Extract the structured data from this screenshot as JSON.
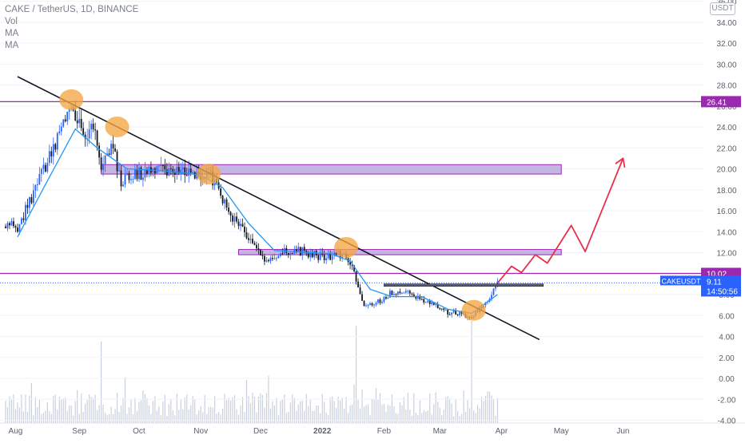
{
  "header": {
    "symbol_line": "CAKE / TetherUS, 1D, BINANCE",
    "indicators": [
      "Vol",
      "MA",
      "MA"
    ],
    "currency_button": "USDT"
  },
  "chart_data": {
    "type": "candlestick",
    "title": "CAKE / TetherUS, 1D, BINANCE",
    "x_ticks": [
      "Aug",
      "Sep",
      "Oct",
      "Nov",
      "Dec",
      "2022",
      "Feb",
      "Mar",
      "Apr",
      "May",
      "Jun"
    ],
    "y_ticks": [
      36.0,
      34.0,
      32.0,
      30.0,
      28.0,
      26.0,
      24.0,
      22.0,
      20.0,
      18.0,
      16.0,
      14.0,
      12.0,
      10.0,
      8.0,
      6.0,
      4.0,
      2.0,
      0.0,
      -2.0,
      -4.0
    ],
    "y_tick_labels": [
      "36.00",
      "34.00",
      "32.00",
      "30.00",
      "28.00",
      "26.00",
      "24.00",
      "22.00",
      "20.00",
      "18.00",
      "16.00",
      "14.00",
      "12.00",
      "10.00",
      "8.00",
      "6.00",
      "4.00",
      "2.00",
      "0.00",
      "-2.00",
      "-4.00"
    ],
    "ylim": [
      -4.0,
      36.0
    ],
    "price_path": [
      {
        "date": "2021-08-01",
        "price": 14.5
      },
      {
        "date": "2021-08-10",
        "price": 18.0
      },
      {
        "date": "2021-08-20",
        "price": 22.5
      },
      {
        "date": "2021-08-28",
        "price": 26.0
      },
      {
        "date": "2021-09-03",
        "price": 23.5
      },
      {
        "date": "2021-09-08",
        "price": 24.0
      },
      {
        "date": "2021-09-12",
        "price": 19.5
      },
      {
        "date": "2021-09-17",
        "price": 22.5
      },
      {
        "date": "2021-09-22",
        "price": 19.0
      },
      {
        "date": "2021-10-01",
        "price": 19.5
      },
      {
        "date": "2021-10-15",
        "price": 20.0
      },
      {
        "date": "2021-10-28",
        "price": 19.3
      },
      {
        "date": "2021-11-05",
        "price": 19.5
      },
      {
        "date": "2021-11-12",
        "price": 17.0
      },
      {
        "date": "2021-11-20",
        "price": 14.5
      },
      {
        "date": "2021-11-28",
        "price": 12.5
      },
      {
        "date": "2021-12-03",
        "price": 11.2
      },
      {
        "date": "2021-12-12",
        "price": 12.0
      },
      {
        "date": "2021-12-20",
        "price": 12.2
      },
      {
        "date": "2021-12-28",
        "price": 11.8
      },
      {
        "date": "2022-01-05",
        "price": 11.5
      },
      {
        "date": "2022-01-12",
        "price": 12.0
      },
      {
        "date": "2022-01-17",
        "price": 10.0
      },
      {
        "date": "2022-01-22",
        "price": 7.0
      },
      {
        "date": "2022-01-28",
        "price": 7.2
      },
      {
        "date": "2022-02-05",
        "price": 8.2
      },
      {
        "date": "2022-02-12",
        "price": 8.3
      },
      {
        "date": "2022-02-20",
        "price": 7.6
      },
      {
        "date": "2022-02-28",
        "price": 6.8
      },
      {
        "date": "2022-03-05",
        "price": 6.3
      },
      {
        "date": "2022-03-12",
        "price": 6.1
      },
      {
        "date": "2022-03-17",
        "price": 5.8
      },
      {
        "date": "2022-03-22",
        "price": 6.8
      },
      {
        "date": "2022-03-27",
        "price": 8.0
      },
      {
        "date": "2022-03-30",
        "price": 9.11
      }
    ],
    "moving_average": [
      {
        "date": "2021-08-01",
        "price": 13.5
      },
      {
        "date": "2021-08-15",
        "price": 18.5
      },
      {
        "date": "2021-08-30",
        "price": 23.8
      },
      {
        "date": "2021-09-10",
        "price": 22.0
      },
      {
        "date": "2021-09-25",
        "price": 20.0
      },
      {
        "date": "2021-10-15",
        "price": 19.8
      },
      {
        "date": "2021-11-01",
        "price": 19.4
      },
      {
        "date": "2021-11-12",
        "price": 18.2
      },
      {
        "date": "2021-11-25",
        "price": 14.8
      },
      {
        "date": "2021-12-08",
        "price": 12.2
      },
      {
        "date": "2022-01-05",
        "price": 11.9
      },
      {
        "date": "2022-01-15",
        "price": 11.2
      },
      {
        "date": "2022-01-25",
        "price": 8.5
      },
      {
        "date": "2022-02-05",
        "price": 7.8
      },
      {
        "date": "2022-02-20",
        "price": 7.8
      },
      {
        "date": "2022-03-05",
        "price": 6.6
      },
      {
        "date": "2022-03-17",
        "price": 6.2
      },
      {
        "date": "2022-03-30",
        "price": 8.0
      }
    ],
    "volume_spikes": [
      {
        "date": "2021-09-12",
        "level": 0.8
      },
      {
        "date": "2022-01-18",
        "level": 0.95
      },
      {
        "date": "2022-03-17",
        "level": 1.0
      }
    ],
    "horizontal_levels": [
      {
        "price": 26.41,
        "label": "26.41",
        "color": "#9c27b0"
      },
      {
        "price": 10.02,
        "label": "10.02",
        "color": "#9c27b0"
      }
    ],
    "zones": [
      {
        "from_date": "2021-09-12",
        "to_date": "2022-05-01",
        "low": 19.5,
        "high": 20.4
      },
      {
        "from_date": "2021-11-20",
        "to_date": "2022-05-01",
        "low": 11.8,
        "high": 12.3
      }
    ],
    "trendline": {
      "from": {
        "date": "2021-08-01",
        "price": 28.8
      },
      "to": {
        "date": "2022-04-20",
        "price": 3.7
      }
    },
    "resistance_segment": {
      "from_date": "2022-02-01",
      "to_date": "2022-04-22",
      "price": 8.9
    },
    "highlight_circles": [
      {
        "date": "2021-08-28",
        "price": 26.6
      },
      {
        "date": "2021-09-20",
        "price": 24.0
      },
      {
        "date": "2021-11-05",
        "price": 19.5
      },
      {
        "date": "2022-01-13",
        "price": 12.5
      },
      {
        "date": "2022-03-18",
        "price": 6.5
      }
    ],
    "projection_path": [
      {
        "date": "2022-03-30",
        "price": 9.1
      },
      {
        "date": "2022-04-06",
        "price": 10.7
      },
      {
        "date": "2022-04-11",
        "price": 10.1
      },
      {
        "date": "2022-04-18",
        "price": 11.8
      },
      {
        "date": "2022-04-24",
        "price": 11.0
      },
      {
        "date": "2022-05-06",
        "price": 14.6
      },
      {
        "date": "2022-05-13",
        "price": 12.1
      },
      {
        "date": "2022-06-01",
        "price": 21.0
      }
    ],
    "current": {
      "symbol": "CAKEUSDT",
      "price": 9.11,
      "price_label": "9.11",
      "countdown": "14:50:56"
    },
    "colors": {
      "up": "#2962ff",
      "down": "#131722",
      "ma": "#2196f3",
      "level": "#9c27b0",
      "zone_fill": "#b39ddb",
      "trend": "#131722",
      "projection": "#e8304a",
      "circle": "#f5a742",
      "volume": "#c9d0dd"
    }
  }
}
